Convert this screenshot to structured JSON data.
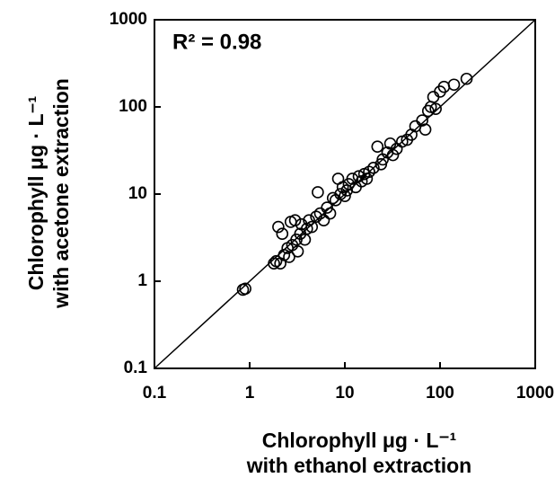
{
  "chart_data": {
    "type": "scatter",
    "annotation": "R² = 0.98",
    "xlabel": [
      "Chlorophyll μg · L⁻¹",
      "with ethanol extraction"
    ],
    "ylabel": [
      "Chlorophyll μg · L⁻¹",
      "with acetone extraction"
    ],
    "x": [
      0.85,
      0.9,
      1.8,
      1.9,
      2,
      2.1,
      2.2,
      2.3,
      2.5,
      2.6,
      2.7,
      2.8,
      3,
      3.1,
      3.2,
      3.4,
      3.5,
      3.8,
      4,
      4.2,
      4.5,
      5,
      5.2,
      5.5,
      6,
      6.5,
      7,
      7.5,
      8,
      8.5,
      9,
      9.5,
      10,
      10.5,
      11,
      12,
      13,
      14,
      15,
      16,
      17,
      18,
      20,
      22,
      24,
      25,
      28,
      30,
      32,
      35,
      40,
      45,
      50,
      55,
      65,
      70,
      75,
      80,
      85,
      90,
      100,
      110,
      140,
      190
    ],
    "values": [
      0.8,
      0.82,
      1.6,
      1.7,
      4.2,
      1.6,
      3.5,
      2,
      2.4,
      1.9,
      4.8,
      2.6,
      5,
      3,
      2.2,
      3.5,
      4.5,
      3,
      4,
      5,
      4.2,
      5.5,
      10.5,
      6,
      5,
      7,
      6,
      9,
      8.5,
      15,
      10,
      12,
      9.5,
      11,
      13,
      15,
      12,
      16,
      14,
      17,
      15,
      18,
      20,
      35,
      22,
      25,
      30,
      38,
      28,
      33,
      40,
      42,
      48,
      60,
      70,
      55,
      90,
      100,
      130,
      95,
      150,
      170,
      180,
      210
    ],
    "color": "#000000",
    "xlim": [
      0.1,
      1000
    ],
    "ylim": [
      0.1,
      1000
    ],
    "xticks": [
      0.1,
      1,
      10,
      100,
      1000
    ],
    "yticks": [
      0.1,
      1,
      10,
      100,
      1000
    ],
    "xscale": "log",
    "yscale": "log"
  }
}
